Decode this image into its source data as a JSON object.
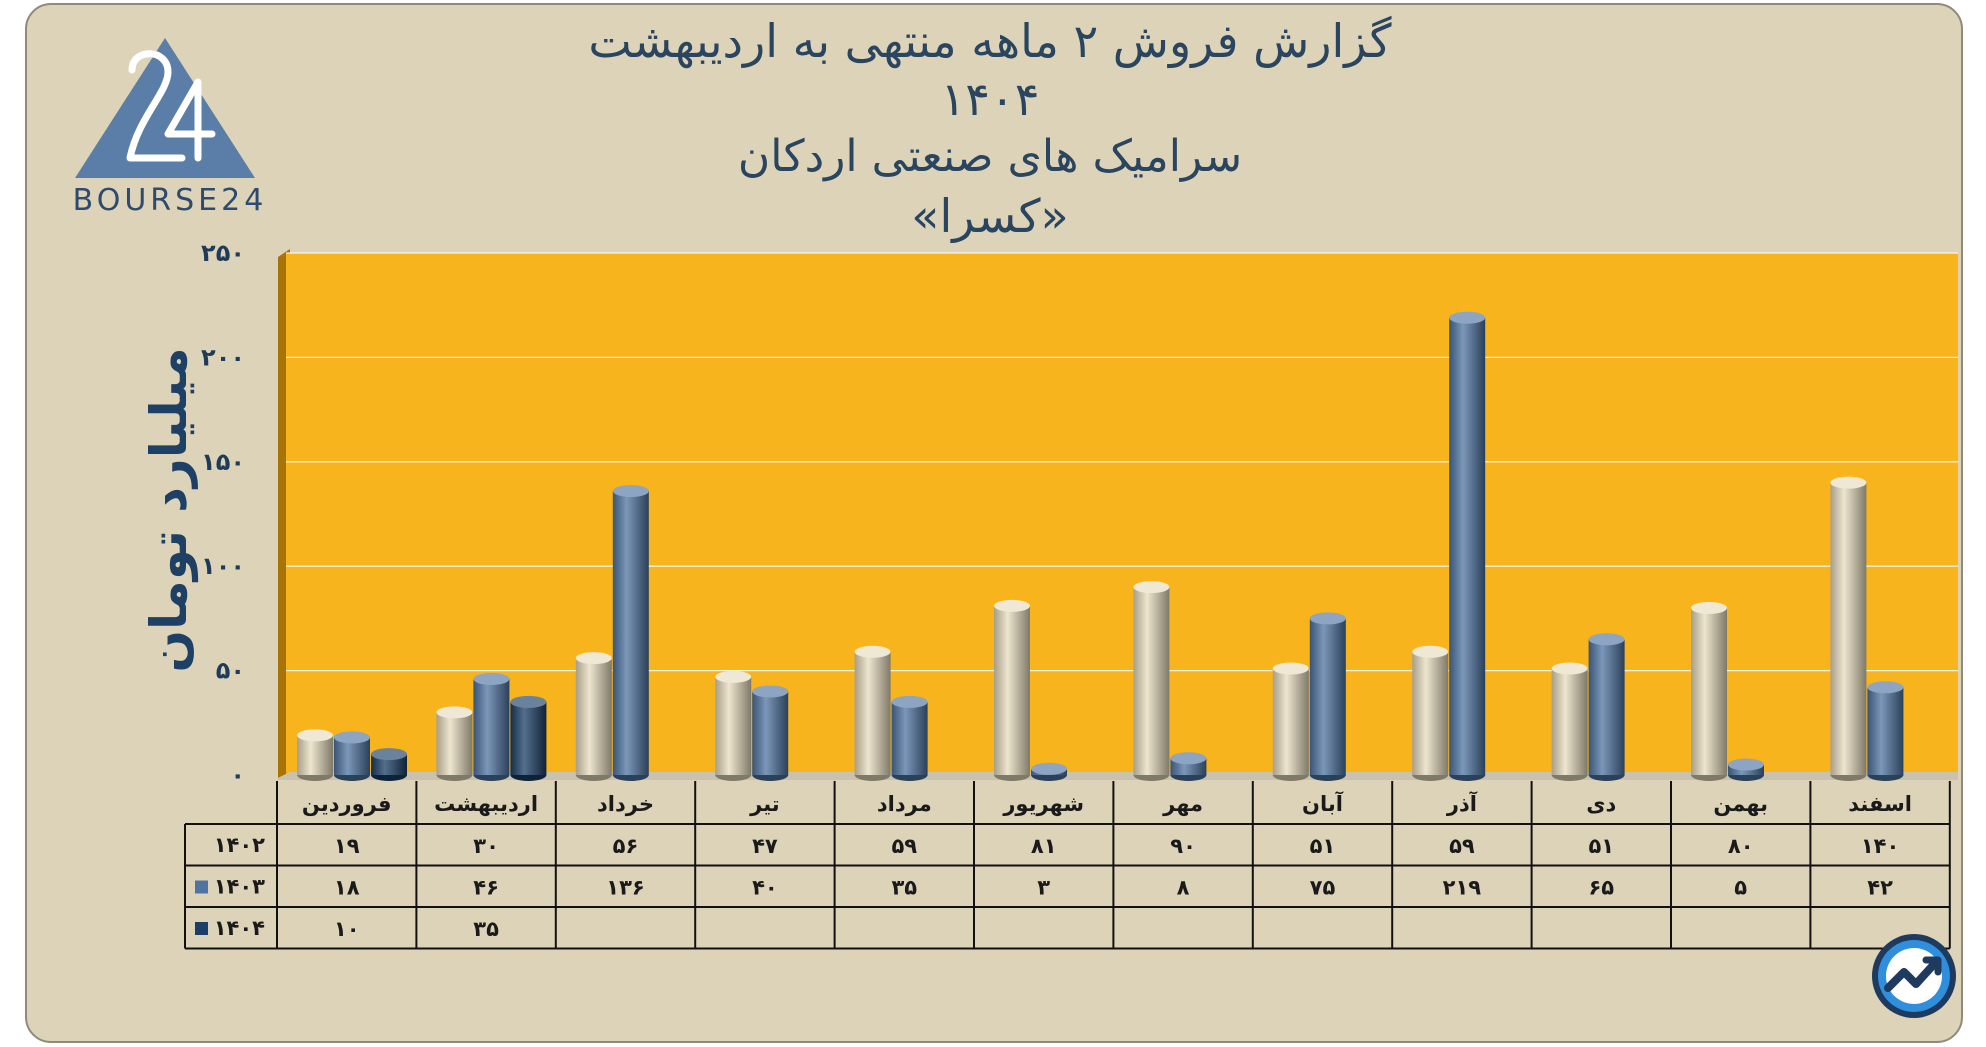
{
  "title": {
    "line1": "گزارش  فروش ۲ ماهه منتهی به اردیبهشت ۱۴۰۴",
    "line2": "سرامیک های صنعتی اردکان",
    "line3": "«کسرا»"
  },
  "logo": {
    "text": "BOURSE24",
    "mark": "24"
  },
  "colors": {
    "frame": "#ddd3b9",
    "plot": "#f8b41c",
    "plot_side": "#a87408",
    "s1402": "#e7dcbd",
    "s1403": "#4f74a1",
    "s1404": "#1b3f66",
    "axis_text": "#1f3b5a"
  },
  "chart_data": {
    "type": "bar",
    "ylabel": "میلیارد تومان",
    "ylim": [
      0,
      250
    ],
    "yticks": [
      0,
      50,
      100,
      150,
      200,
      250
    ],
    "ytick_labels": [
      "۰",
      "۵۰",
      "۱۰۰",
      "۱۵۰",
      "۲۰۰",
      "۲۵۰"
    ],
    "categories": [
      "فروردین",
      "اردیبهشت",
      "خرداد",
      "تیر",
      "مرداد",
      "شهریور",
      "مهر",
      "آبان",
      "آذر",
      "دی",
      "بهمن",
      "اسفند"
    ],
    "grid": true,
    "legend": "table",
    "series": [
      {
        "name": "۱۴۰۲",
        "color": "#e7dcbd",
        "values": [
          19,
          30,
          56,
          47,
          59,
          81,
          90,
          51,
          59,
          51,
          80,
          140
        ],
        "labels": [
          "۱۹",
          "۳۰",
          "۵۶",
          "۴۷",
          "۵۹",
          "۸۱",
          "۹۰",
          "۵۱",
          "۵۹",
          "۵۱",
          "۸۰",
          "۱۴۰"
        ]
      },
      {
        "name": "۱۴۰۳",
        "color": "#4f74a1",
        "values": [
          18,
          46,
          136,
          40,
          35,
          3,
          8,
          75,
          219,
          65,
          5,
          42
        ],
        "labels": [
          "۱۸",
          "۴۶",
          "۱۳۶",
          "۴۰",
          "۳۵",
          "۳",
          "۸",
          "۷۵",
          "۲۱۹",
          "۶۵",
          "۵",
          "۴۲"
        ]
      },
      {
        "name": "۱۴۰۴",
        "color": "#1b3f66",
        "values": [
          10,
          35,
          null,
          null,
          null,
          null,
          null,
          null,
          null,
          null,
          null,
          null
        ],
        "labels": [
          "۱۰",
          "۳۵",
          "",
          "",
          "",
          "",
          "",
          "",
          "",
          "",
          "",
          ""
        ]
      }
    ]
  }
}
